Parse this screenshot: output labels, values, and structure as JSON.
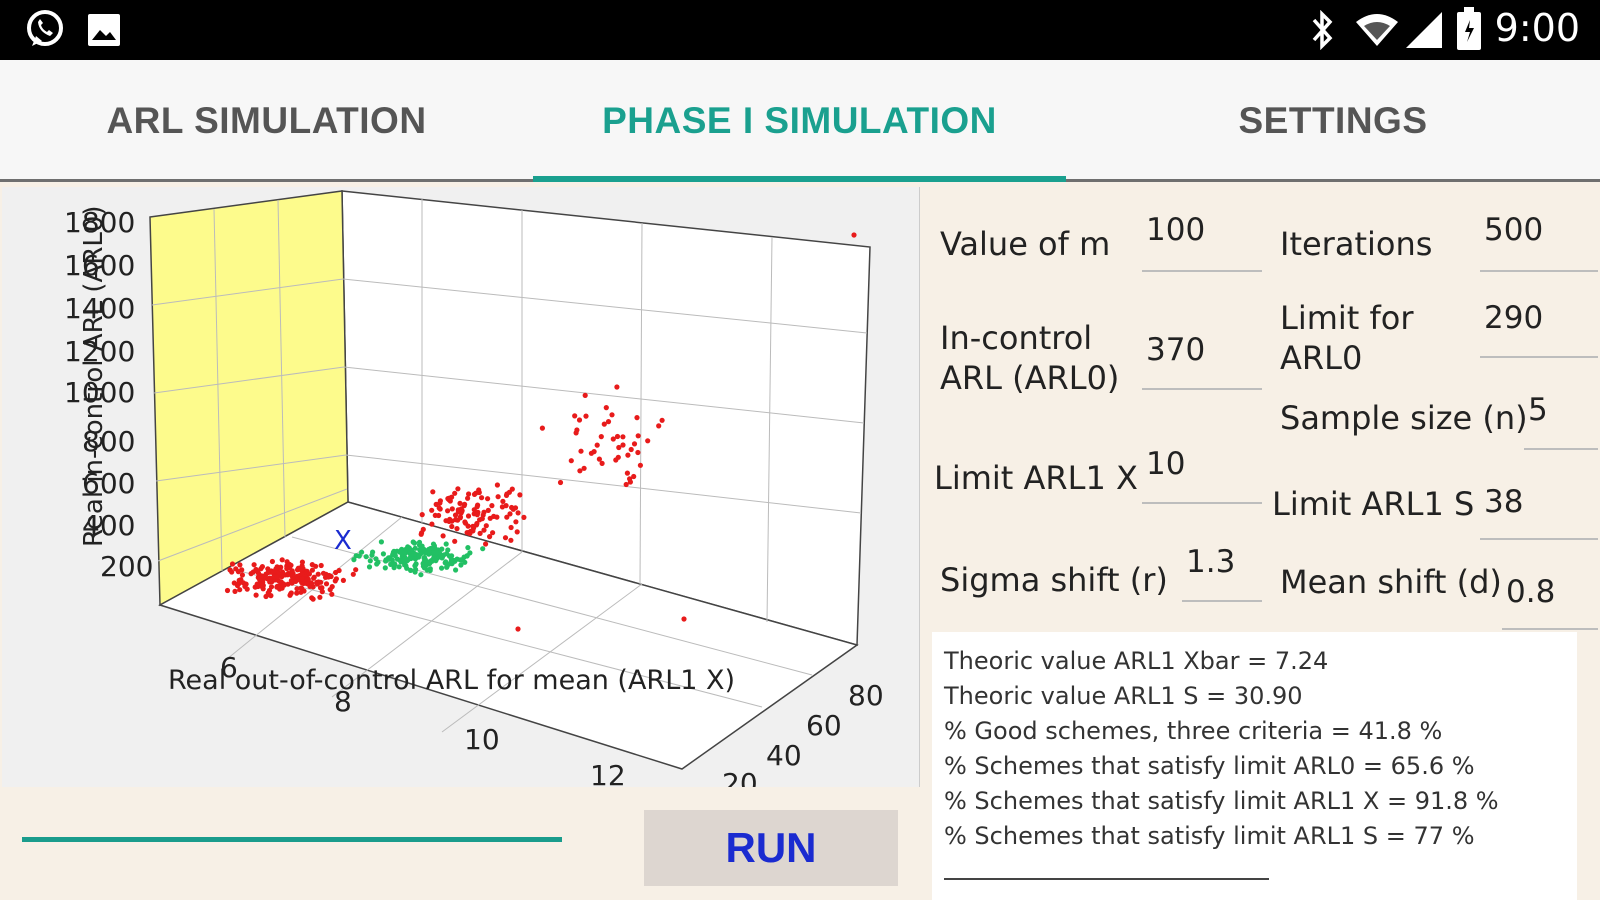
{
  "status_bar": {
    "time": "9:00",
    "left_icons": [
      "whatsapp-icon",
      "image-icon"
    ],
    "right_icons": [
      "bluetooth-icon",
      "wifi-icon",
      "signal-icon",
      "battery-icon"
    ]
  },
  "tabs": [
    {
      "label": "ARL SIMULATION",
      "active": false
    },
    {
      "label": "PHASE I SIMULATION",
      "active": true
    },
    {
      "label": "SETTINGS",
      "active": false
    }
  ],
  "colors": {
    "accent": "#1aa08f",
    "run_text": "#1a2bd0",
    "red_points": "#e81b1b",
    "green_points": "#22c064",
    "wall_yellow": "#fdfb8c"
  },
  "chart": {
    "type": "scatter3d",
    "z_ticks": [
      "1800",
      "1600",
      "1400",
      "1200",
      "1000",
      "800",
      "600",
      "400",
      "200"
    ],
    "x_ticks": [
      "6",
      "8",
      "10",
      "12"
    ],
    "y_ticks": [
      "80",
      "60",
      "40",
      "20"
    ],
    "xlabel": "Real out-of-control ARL for mean (ARL1 X)",
    "zlabel": "Real in-control ARL (ARL0)",
    "marker_label": "X"
  },
  "form": {
    "value_of_m": {
      "label": "Value of m",
      "value": "100"
    },
    "iterations": {
      "label": "Iterations",
      "value": "500"
    },
    "arl0": {
      "label_line1": "In-control",
      "label_line2": "ARL (ARL0)",
      "value": "370"
    },
    "limit_arl0": {
      "label_line1": "Limit for",
      "label_line2": "ARL0",
      "value": "290"
    },
    "sample_size": {
      "label": "Sample size (n)",
      "value": "5"
    },
    "limit_arl1_x": {
      "label": "Limit ARL1 X",
      "value": "10"
    },
    "limit_arl1_s": {
      "label": "Limit  ARL1 S",
      "value": "38"
    },
    "sigma_shift": {
      "label": "Sigma shift (r)",
      "value": "1.3"
    },
    "mean_shift": {
      "label": "Mean shift (d)",
      "value": "0.8"
    }
  },
  "results": [
    "Theoric value ARL1 Xbar = 7.24",
    "Theoric value ARL1 S = 30.90",
    "% Good schemes, three criteria = 41.8 %",
    "% Schemes that satisfy limit ARL0 = 65.6 %",
    "% Schemes that satisfy limit ARL1 X = 91.8 %",
    "% Schemes that satisfy limit ARL1 S = 77 %"
  ],
  "run_button": {
    "label": "RUN"
  }
}
